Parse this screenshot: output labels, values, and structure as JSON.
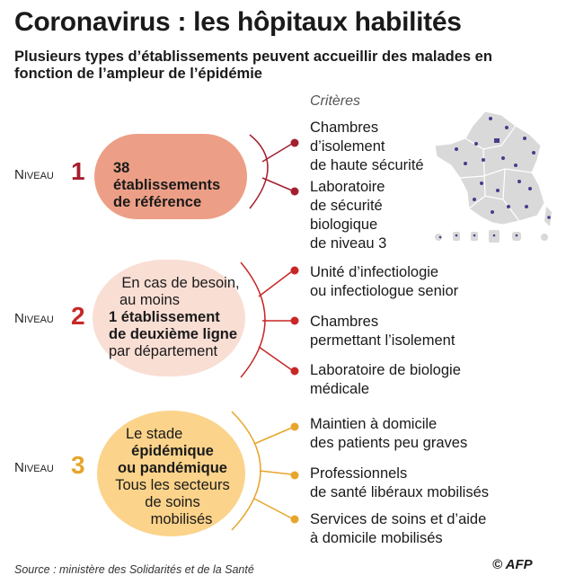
{
  "title": "Coronavirus : les hôpitaux habilités",
  "subtitle": "Plusieurs types d’établissements peuvent accueillir des malades en fonction de l’ampleur de l’épidémie",
  "criteria_header": "Critères",
  "levels": [
    {
      "label": "Niveau",
      "number": "1",
      "color": "#a41f2f",
      "circle_color": "#ec9f86",
      "text": [
        "38",
        "établissements",
        "de référence"
      ],
      "criteria": [
        [
          "Chambres",
          "d’isolement",
          "de haute sécurité"
        ],
        [
          "Laboratoire",
          "de sécurité",
          "biologique",
          "de niveau 3"
        ]
      ]
    },
    {
      "label": "Niveau",
      "number": "2",
      "color": "#c82727",
      "circle_color": "#f9ded4",
      "text": [
        "En cas de besoin,",
        "au moins",
        "1 établissement",
        "de deuxième ligne",
        "par département"
      ],
      "criteria": [
        [
          "Unité d’infectiologie",
          "ou infectiologue senior"
        ],
        [
          "Chambres",
          "permettant l’isolement"
        ],
        [
          "Laboratoire de biologie",
          "médicale"
        ]
      ]
    },
    {
      "label": "Niveau",
      "number": "3",
      "color": "#e7a52b",
      "circle_color": "#fbd38a",
      "text": [
        "Le stade",
        "épidémique",
        "ou pandémique",
        "Tous les secteurs",
        "de soins",
        "mobilisés"
      ],
      "criteria": [
        [
          "Maintien à domicile",
          "des patients peu graves"
        ],
        [
          "Professionnels",
          "de santé libéraux mobilisés"
        ],
        [
          "Services de soins et d’aide",
          "à domicile mobilisés"
        ]
      ]
    }
  ],
  "source": "Source : ministère des Solidarités et de la Santé",
  "credit": "© AFP"
}
